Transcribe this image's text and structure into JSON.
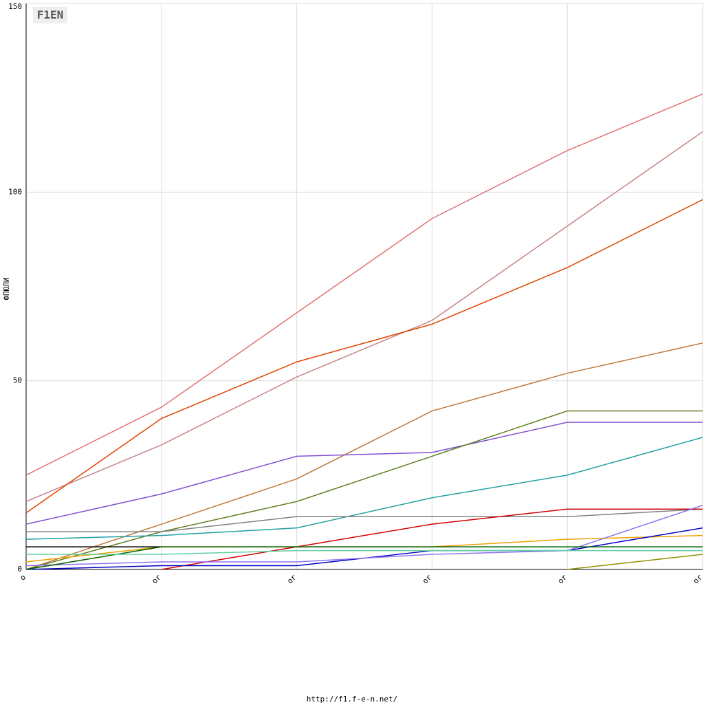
{
  "chart_data": {
    "type": "line",
    "logo": "F1EN",
    "y_label": "ФПЮЛИ",
    "footer": "http://f1.f-e-n.net/",
    "categories": [
      "o",
      "or",
      "or",
      "or",
      "or",
      "or"
    ],
    "ylim": [
      0,
      150
    ],
    "yticks": [
      0,
      50,
      100,
      150
    ],
    "grid": true,
    "series": [
      {
        "color": "#e07272",
        "values": [
          25,
          43,
          68,
          93,
          111,
          126
        ]
      },
      {
        "color": "#c48484",
        "values": [
          18,
          33,
          51,
          66,
          91,
          116
        ]
      },
      {
        "color": "#e04400",
        "values": [
          15,
          40,
          55,
          65,
          80,
          98
        ]
      },
      {
        "color": "#c07838",
        "values": [
          0,
          12,
          24,
          42,
          52,
          60
        ]
      },
      {
        "color": "#8050d0",
        "values": [
          12,
          20,
          30,
          31,
          39,
          39
        ]
      },
      {
        "color": "#608020",
        "values": [
          0,
          10,
          18,
          30,
          42,
          42
        ]
      },
      {
        "color": "#20a0a0",
        "values": [
          8,
          9,
          11,
          19,
          25,
          35
        ]
      },
      {
        "color": "#808080",
        "values": [
          10,
          10,
          14,
          14,
          14,
          16
        ]
      },
      {
        "color": "#d00000",
        "values": [
          null,
          0,
          6,
          12,
          16,
          16
        ]
      },
      {
        "color": "#f0a000",
        "values": [
          2,
          6,
          6,
          6,
          8,
          9
        ]
      },
      {
        "color": "#0000c0",
        "values": [
          0,
          1,
          1,
          5,
          5,
          11
        ]
      },
      {
        "color": "#9070f0",
        "values": [
          1,
          2,
          2,
          4,
          5,
          17
        ]
      },
      {
        "color": "#000000",
        "values": [
          6,
          6,
          null,
          null,
          null,
          null
        ]
      },
      {
        "color": "#006000",
        "values": [
          0,
          6,
          6,
          6,
          6,
          6
        ]
      },
      {
        "color": "#60d0a0",
        "values": [
          4,
          4,
          5,
          5,
          5,
          5
        ]
      },
      {
        "color": "#909000",
        "values": [
          null,
          null,
          null,
          null,
          0,
          4
        ]
      }
    ]
  }
}
